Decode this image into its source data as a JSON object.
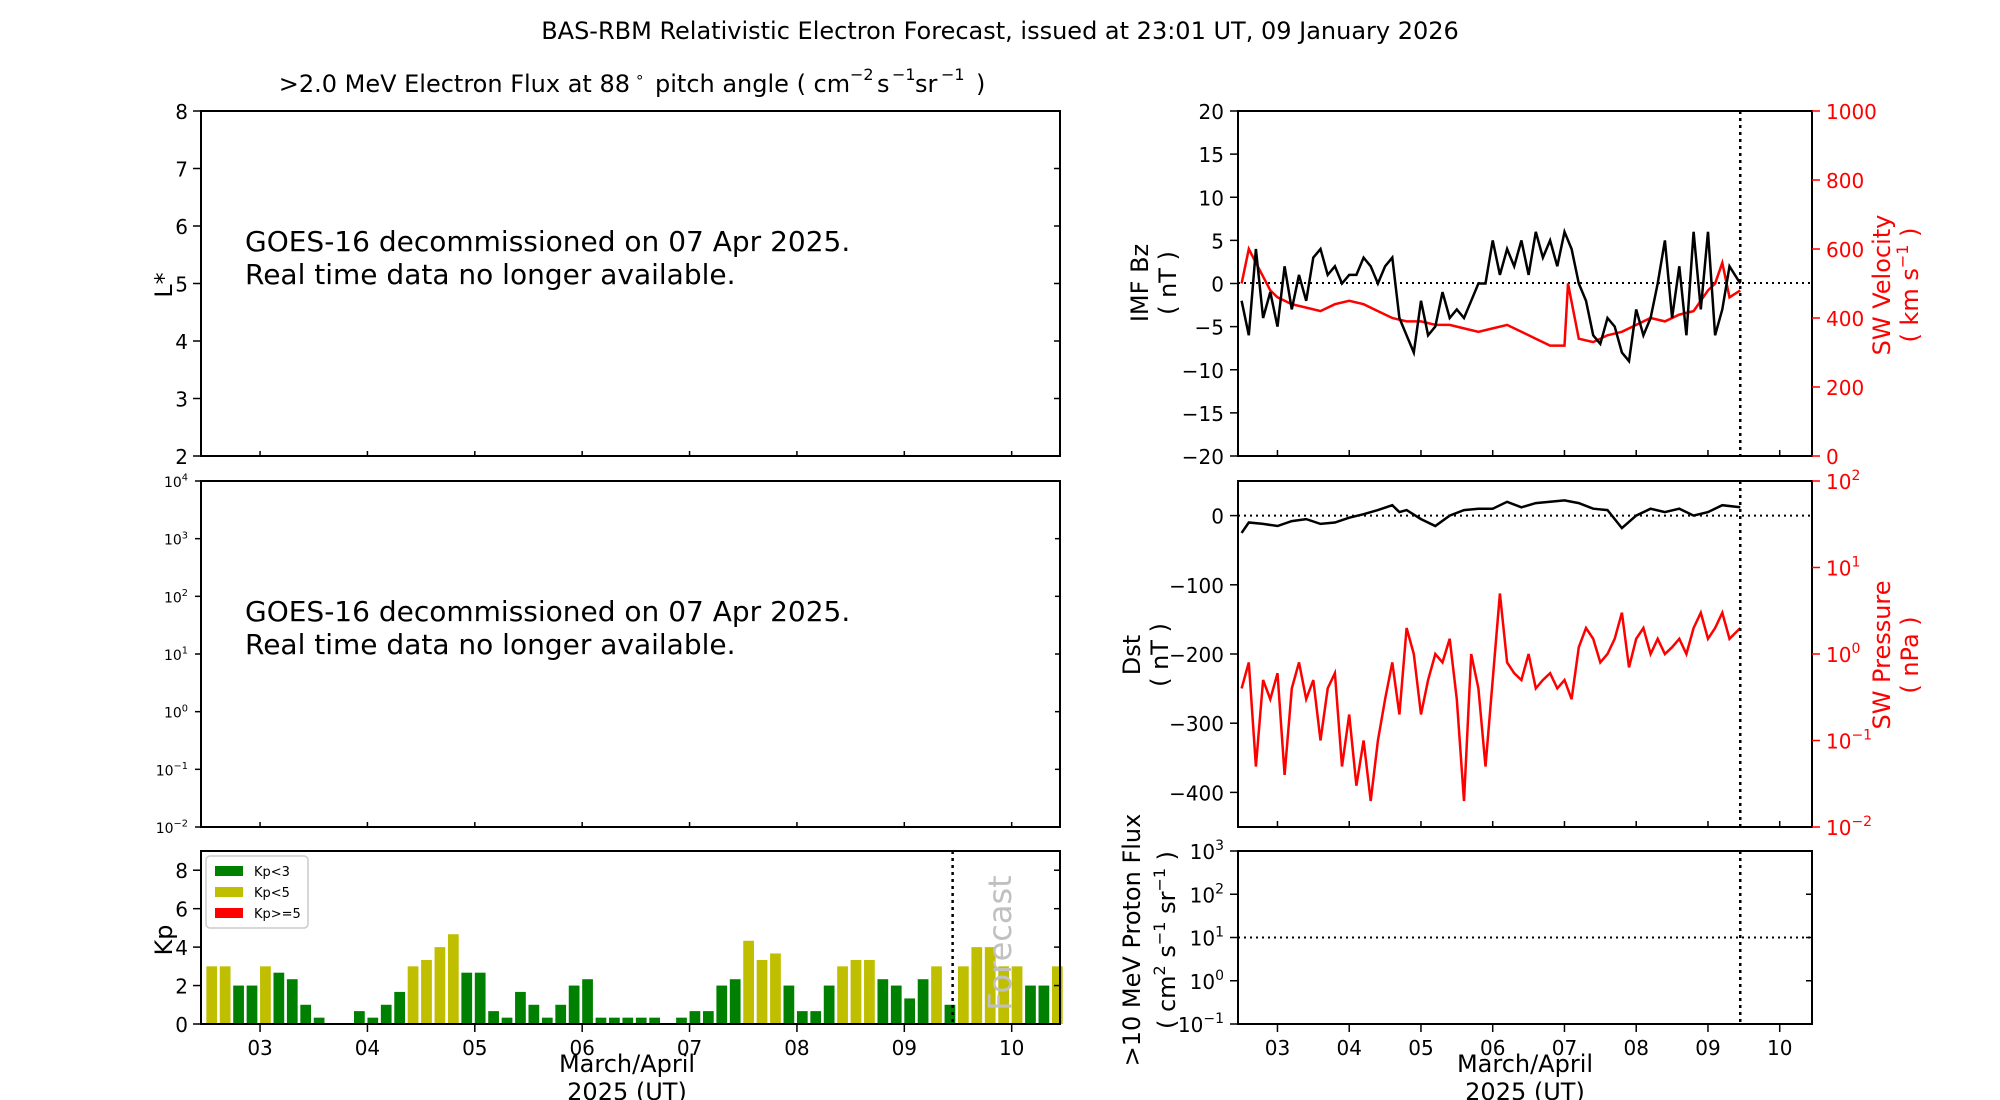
{
  "title": "BAS-RBM Relativistic Electron Forecast, issued at 23:01 UT, 09 January 2026",
  "colors": {
    "kp_low": "#008000",
    "kp_mid": "#bfbf00",
    "kp_high": "#ff0000",
    "sw": "#ff0000",
    "black": "#000000"
  },
  "chart_data": [
    {
      "id": "flux-panel",
      "type": "heatmap",
      "title": ">2.0 MeV Electron Flux at 88",
      "title_units": "pitch angle ( cm",
      "ylabel": "L*",
      "yticks": [
        "2",
        "3",
        "4",
        "5",
        "6",
        "7",
        "8"
      ],
      "ylim": [
        2,
        8
      ],
      "message_line1": "GOES-16 decommissioned on 07 Apr 2025.",
      "message_line2": "Real time data no longer available."
    },
    {
      "id": "goes-panel",
      "type": "line",
      "yscale": "log",
      "ylim": [
        0.01,
        10000
      ],
      "ytick_exponents": [
        "4",
        "3",
        "2",
        "1",
        "0",
        "−1",
        "−2"
      ],
      "message_line1": "GOES-16 decommissioned on 07 Apr 2025.",
      "message_line2": "Real time data no longer available."
    },
    {
      "id": "kp-panel",
      "type": "bar",
      "ylabel": "Kp",
      "yticks": [
        "0",
        "2",
        "4",
        "6",
        "8"
      ],
      "ylim": [
        0,
        9
      ],
      "xlim": [
        2.45,
        10.45
      ],
      "xticks": [
        "03",
        "04",
        "05",
        "06",
        "07",
        "08",
        "09",
        "10"
      ],
      "xlabel_line1": "March/April",
      "xlabel_line2": "2025 (UT)",
      "forecast_label": "Forecast",
      "forecast_start": 9.45,
      "legend": [
        {
          "label": "Kp<3",
          "color": "#008000"
        },
        {
          "label": "Kp<5",
          "color": "#bfbf00"
        },
        {
          "label": "Kp>=5",
          "color": "#ff0000"
        }
      ],
      "bar_width_days": 0.1,
      "values": [
        3.0,
        3.0,
        2.0,
        2.0,
        3.0,
        2.67,
        2.33,
        1.0,
        0.33,
        0,
        0,
        0.67,
        0.33,
        1.0,
        1.67,
        3.0,
        3.33,
        4.0,
        4.67,
        2.67,
        2.67,
        0.67,
        0.33,
        1.67,
        1.0,
        0.33,
        1.0,
        2.0,
        2.33,
        0.33,
        0.33,
        0.33,
        0.33,
        0.33,
        0,
        0.33,
        0.67,
        0.67,
        2.0,
        2.33,
        4.33,
        3.33,
        3.67,
        2.0,
        0.67,
        0.67,
        2.0,
        3.0,
        3.33,
        3.33,
        2.33,
        2.0,
        1.33,
        2.33,
        3.0,
        1.0,
        3.0,
        4.0,
        4.0,
        3.0,
        3.0,
        2.0,
        2.0,
        3.0
      ],
      "x_start": 2.5,
      "x_step": 0.125
    },
    {
      "id": "imf-panel",
      "type": "line",
      "ylabel_line1": "IMF Bz",
      "ylabel_line2": "( nT )",
      "y2label_line1": "SW Velocity",
      "y2label_line2": "( km s",
      "yticks": [
        "20",
        "15",
        "10",
        "5",
        "0",
        "−5",
        "−10",
        "−15",
        "−20"
      ],
      "ylim": [
        -20,
        20
      ],
      "y2ticks": [
        "1000",
        "800",
        "600",
        "400",
        "200",
        "0"
      ],
      "y2lim": [
        0,
        1000
      ],
      "xlim": [
        2.45,
        10.45
      ],
      "now": 9.45,
      "series": [
        {
          "key": "bz",
          "x": [
            2.5,
            2.6,
            2.7,
            2.8,
            2.9,
            3.0,
            3.1,
            3.2,
            3.3,
            3.4,
            3.5,
            3.6,
            3.7,
            3.8,
            3.9,
            4.0,
            4.1,
            4.2,
            4.3,
            4.4,
            4.5,
            4.6,
            4.7,
            4.8,
            4.9,
            5.0,
            5.1,
            5.2,
            5.3,
            5.4,
            5.5,
            5.6,
            5.7,
            5.8,
            5.9,
            6.0,
            6.1,
            6.2,
            6.3,
            6.4,
            6.5,
            6.6,
            6.7,
            6.8,
            6.9,
            7.0,
            7.1,
            7.2,
            7.3,
            7.4,
            7.5,
            7.6,
            7.7,
            7.8,
            7.9,
            8.0,
            8.1,
            8.2,
            8.3,
            8.4,
            8.5,
            8.6,
            8.7,
            8.8,
            8.9,
            9.0,
            9.1,
            9.2,
            9.3,
            9.45
          ],
          "values": [
            -2,
            -6,
            4,
            -4,
            -1,
            -5,
            2,
            -3,
            1,
            -2,
            3,
            4,
            1,
            2,
            0,
            1,
            1,
            3,
            2,
            0,
            2,
            3,
            -4,
            -6,
            -8,
            -2,
            -6,
            -5,
            -1,
            -4,
            -3,
            -4,
            -2,
            0,
            0,
            5,
            1,
            4,
            2,
            5,
            1,
            6,
            3,
            5,
            2,
            6,
            4,
            0,
            -2,
            -6,
            -7,
            -4,
            -5,
            -8,
            -9,
            -3,
            -6,
            -4,
            0,
            5,
            -4,
            2,
            -6,
            6,
            -3,
            6,
            -6,
            -3,
            2,
            0
          ]
        },
        {
          "key": "vsw",
          "x": [
            2.5,
            2.6,
            2.7,
            2.8,
            2.9,
            3.0,
            3.2,
            3.4,
            3.6,
            3.8,
            4.0,
            4.2,
            4.4,
            4.6,
            4.8,
            5.0,
            5.2,
            5.4,
            5.6,
            5.8,
            6.0,
            6.2,
            6.4,
            6.6,
            6.8,
            7.0,
            7.05,
            7.2,
            7.4,
            7.6,
            7.8,
            8.0,
            8.2,
            8.4,
            8.6,
            8.8,
            9.0,
            9.1,
            9.2,
            9.3,
            9.45
          ],
          "values": [
            500,
            600,
            560,
            520,
            480,
            460,
            440,
            430,
            420,
            440,
            450,
            440,
            420,
            400,
            390,
            390,
            380,
            380,
            370,
            360,
            370,
            380,
            360,
            340,
            320,
            320,
            500,
            340,
            330,
            350,
            360,
            380,
            400,
            390,
            410,
            420,
            480,
            500,
            560,
            460,
            480
          ]
        }
      ]
    },
    {
      "id": "dst-panel",
      "type": "line",
      "ylabel_line1": "Dst",
      "ylabel_line2": "( nT )",
      "y2label_line1": "SW Pressure",
      "y2label_line2": "( nPa )",
      "yticks": [
        "0",
        "−100",
        "−200",
        "−300",
        "−400"
      ],
      "ylim": [
        -450,
        50
      ],
      "y2scale": "log",
      "y2lim": [
        0.01,
        100
      ],
      "y2tick_exponents": [
        "2",
        "1",
        "0",
        "−1",
        "−2"
      ],
      "xlim": [
        2.45,
        10.45
      ],
      "now": 9.45,
      "series": [
        {
          "key": "dst",
          "x": [
            2.5,
            2.6,
            2.8,
            3.0,
            3.2,
            3.4,
            3.6,
            3.8,
            4.0,
            4.2,
            4.4,
            4.6,
            4.7,
            4.8,
            5.0,
            5.2,
            5.4,
            5.6,
            5.8,
            6.0,
            6.2,
            6.4,
            6.6,
            6.8,
            7.0,
            7.2,
            7.4,
            7.6,
            7.8,
            8.0,
            8.2,
            8.4,
            8.6,
            8.8,
            9.0,
            9.2,
            9.45
          ],
          "values": [
            -25,
            -10,
            -12,
            -15,
            -8,
            -5,
            -12,
            -10,
            -3,
            2,
            8,
            15,
            5,
            8,
            -5,
            -15,
            0,
            8,
            10,
            10,
            20,
            12,
            18,
            20,
            22,
            18,
            10,
            8,
            -18,
            0,
            10,
            5,
            10,
            0,
            5,
            15,
            12
          ]
        },
        {
          "key": "psw",
          "x": [
            2.5,
            2.6,
            2.7,
            2.8,
            2.9,
            3.0,
            3.1,
            3.2,
            3.3,
            3.4,
            3.5,
            3.6,
            3.7,
            3.8,
            3.9,
            4.0,
            4.1,
            4.2,
            4.3,
            4.4,
            4.5,
            4.6,
            4.7,
            4.8,
            4.9,
            5.0,
            5.1,
            5.2,
            5.3,
            5.4,
            5.5,
            5.6,
            5.7,
            5.8,
            5.9,
            6.0,
            6.1,
            6.2,
            6.3,
            6.4,
            6.5,
            6.6,
            6.7,
            6.8,
            6.9,
            7.0,
            7.1,
            7.2,
            7.3,
            7.4,
            7.5,
            7.6,
            7.7,
            7.8,
            7.9,
            8.0,
            8.1,
            8.2,
            8.3,
            8.4,
            8.5,
            8.6,
            8.7,
            8.8,
            8.9,
            9.0,
            9.1,
            9.2,
            9.3,
            9.45
          ],
          "values": [
            0.4,
            0.8,
            0.05,
            0.5,
            0.3,
            0.6,
            0.04,
            0.4,
            0.8,
            0.3,
            0.5,
            0.1,
            0.4,
            0.6,
            0.05,
            0.2,
            0.03,
            0.1,
            0.02,
            0.1,
            0.3,
            0.8,
            0.2,
            2.0,
            1.0,
            0.2,
            0.5,
            1.0,
            0.8,
            1.5,
            0.3,
            0.02,
            1.0,
            0.4,
            0.05,
            0.5,
            5.0,
            0.8,
            0.6,
            0.5,
            1.0,
            0.4,
            0.5,
            0.6,
            0.4,
            0.5,
            0.3,
            1.2,
            2.0,
            1.5,
            0.8,
            1.0,
            1.5,
            3.0,
            0.7,
            1.5,
            2.0,
            1.0,
            1.5,
            1.0,
            1.2,
            1.5,
            1.0,
            2.0,
            3.0,
            1.5,
            2.0,
            3.0,
            1.5,
            2.0
          ]
        }
      ]
    },
    {
      "id": "proton-panel",
      "type": "line",
      "ylabel_line1": ">10 MeV Proton Flux",
      "ylabel_line2": "( cm",
      "yscale": "log",
      "ylim": [
        0.1,
        1000
      ],
      "ytick_exponents": [
        "3",
        "2",
        "1",
        "0",
        "−1"
      ],
      "threshold": 10,
      "xlim": [
        2.45,
        10.45
      ],
      "xticks": [
        "03",
        "04",
        "05",
        "06",
        "07",
        "08",
        "09",
        "10"
      ],
      "xlabel_line1": "March/April",
      "xlabel_line2": "2025 (UT)",
      "now": 9.45,
      "series": []
    }
  ]
}
